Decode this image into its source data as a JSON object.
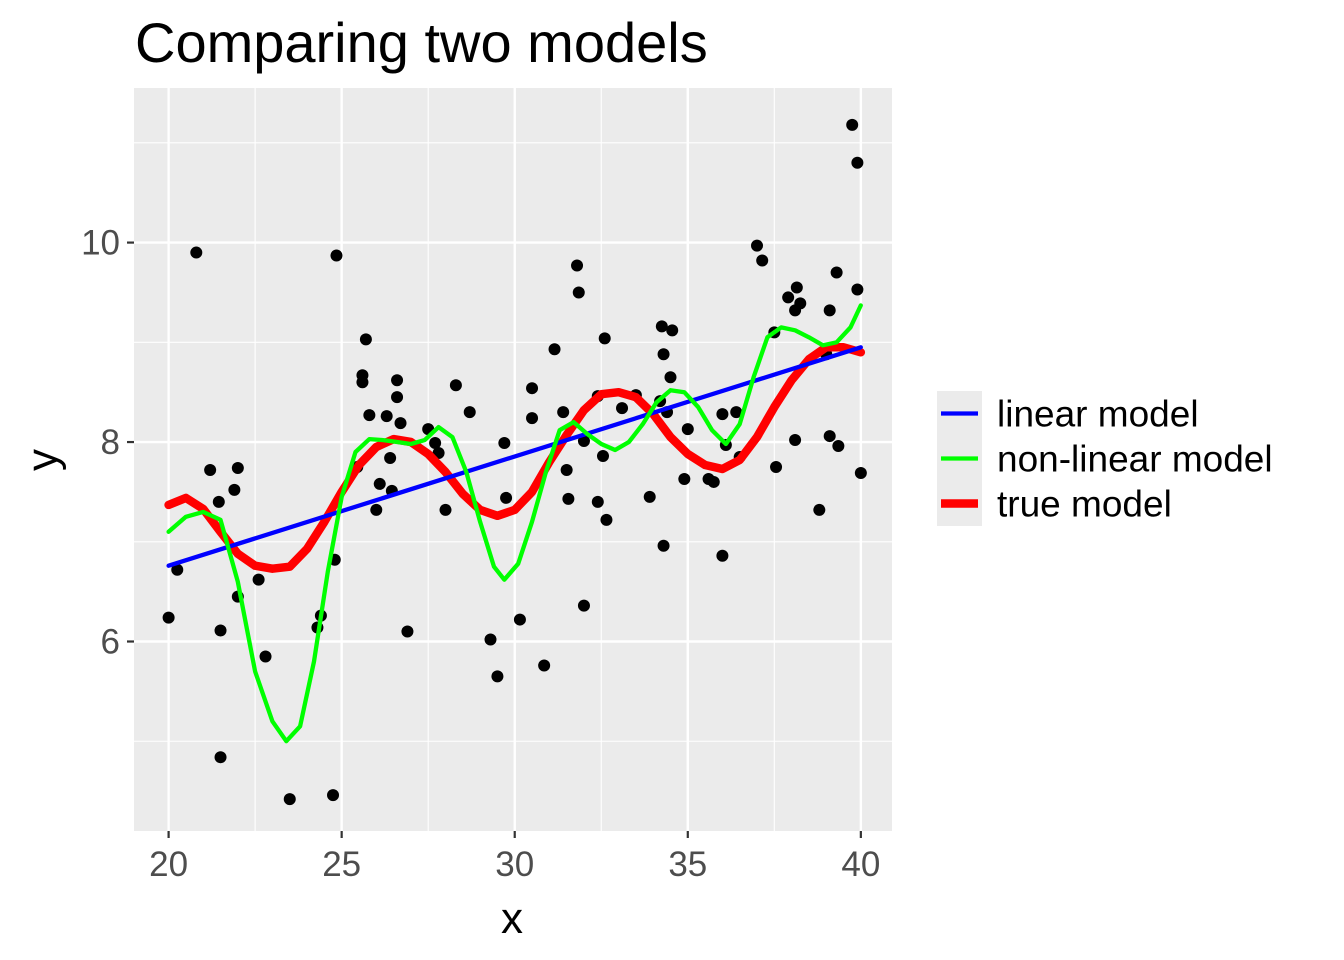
{
  "chart_data": {
    "type": "scatter",
    "title": "Comparing two models",
    "xlabel": "x",
    "ylabel": "y",
    "xlim": [
      19.0,
      40.9
    ],
    "ylim": [
      4.1,
      11.55
    ],
    "x_ticks": [
      20,
      25,
      30,
      35,
      40
    ],
    "y_ticks": [
      6,
      8,
      10
    ],
    "x_tick_labels": [
      "20",
      "25",
      "30",
      "35",
      "40"
    ],
    "y_tick_labels": [
      "6",
      "8",
      "10"
    ],
    "grid": true,
    "legend_position": "right",
    "colors": {
      "panel": "#ebebeb",
      "grid": "#ffffff",
      "points": "#000000",
      "linear": "#0000ff",
      "nonlinear": "#00ff00",
      "true": "#ff0000"
    },
    "points": [
      [
        20.0,
        6.24
      ],
      [
        20.25,
        6.72
      ],
      [
        20.8,
        9.9
      ],
      [
        21.2,
        7.72
      ],
      [
        21.45,
        7.4
      ],
      [
        21.5,
        6.11
      ],
      [
        21.5,
        4.84
      ],
      [
        21.9,
        7.52
      ],
      [
        22.0,
        7.74
      ],
      [
        22.0,
        6.45
      ],
      [
        22.6,
        6.62
      ],
      [
        22.8,
        5.85
      ],
      [
        23.5,
        4.42
      ],
      [
        24.3,
        6.14
      ],
      [
        24.4,
        6.26
      ],
      [
        24.75,
        4.46
      ],
      [
        24.8,
        6.82
      ],
      [
        24.85,
        9.87
      ],
      [
        25.45,
        7.75
      ],
      [
        25.6,
        8.67
      ],
      [
        25.6,
        8.6
      ],
      [
        25.7,
        9.03
      ],
      [
        25.8,
        8.27
      ],
      [
        26.0,
        7.32
      ],
      [
        26.1,
        7.58
      ],
      [
        26.3,
        8.26
      ],
      [
        26.4,
        7.84
      ],
      [
        26.45,
        7.51
      ],
      [
        26.6,
        8.45
      ],
      [
        26.6,
        8.62
      ],
      [
        26.7,
        8.19
      ],
      [
        26.9,
        6.1
      ],
      [
        27.5,
        8.13
      ],
      [
        27.7,
        7.99
      ],
      [
        27.8,
        7.89
      ],
      [
        28.0,
        7.32
      ],
      [
        28.3,
        8.57
      ],
      [
        28.7,
        8.3
      ],
      [
        29.3,
        6.02
      ],
      [
        29.5,
        5.65
      ],
      [
        29.7,
        7.99
      ],
      [
        29.75,
        7.44
      ],
      [
        30.15,
        6.22
      ],
      [
        30.5,
        8.54
      ],
      [
        30.5,
        8.24
      ],
      [
        30.85,
        5.76
      ],
      [
        31.15,
        8.93
      ],
      [
        31.4,
        8.3
      ],
      [
        31.5,
        7.72
      ],
      [
        31.55,
        7.43
      ],
      [
        31.8,
        9.77
      ],
      [
        31.85,
        9.5
      ],
      [
        32.0,
        8.01
      ],
      [
        32.0,
        6.36
      ],
      [
        32.4,
        8.46
      ],
      [
        32.4,
        7.4
      ],
      [
        32.55,
        7.86
      ],
      [
        32.6,
        9.04
      ],
      [
        32.65,
        7.22
      ],
      [
        33.1,
        8.34
      ],
      [
        33.5,
        8.47
      ],
      [
        33.9,
        7.45
      ],
      [
        34.2,
        8.41
      ],
      [
        34.25,
        9.16
      ],
      [
        34.3,
        8.88
      ],
      [
        34.3,
        6.96
      ],
      [
        34.4,
        8.3
      ],
      [
        34.5,
        8.65
      ],
      [
        34.55,
        9.12
      ],
      [
        34.9,
        7.63
      ],
      [
        35.0,
        8.13
      ],
      [
        35.6,
        7.63
      ],
      [
        35.75,
        7.6
      ],
      [
        36.0,
        6.86
      ],
      [
        36.0,
        8.28
      ],
      [
        36.1,
        7.97
      ],
      [
        36.4,
        8.3
      ],
      [
        36.5,
        7.85
      ],
      [
        37.0,
        9.97
      ],
      [
        37.15,
        9.82
      ],
      [
        37.5,
        9.1
      ],
      [
        37.55,
        7.75
      ],
      [
        37.9,
        9.45
      ],
      [
        38.1,
        9.32
      ],
      [
        38.1,
        8.02
      ],
      [
        38.15,
        9.55
      ],
      [
        38.25,
        9.39
      ],
      [
        38.8,
        7.32
      ],
      [
        39.0,
        8.88
      ],
      [
        39.1,
        9.32
      ],
      [
        39.1,
        8.06
      ],
      [
        39.3,
        9.7
      ],
      [
        39.35,
        7.96
      ],
      [
        39.75,
        11.18
      ],
      [
        39.9,
        9.53
      ],
      [
        39.9,
        10.8
      ],
      [
        40.0,
        7.69
      ]
    ],
    "series": [
      {
        "name": "linear model",
        "x": [
          20,
          40
        ],
        "y": [
          6.76,
          8.95
        ]
      },
      {
        "name": "non-linear model",
        "x": [
          20,
          20.5,
          21,
          21.5,
          22,
          22.5,
          23,
          23.4,
          23.8,
          24.2,
          24.6,
          25,
          25.4,
          25.8,
          26.2,
          26.6,
          27,
          27.4,
          27.8,
          28.2,
          28.6,
          29,
          29.4,
          29.7,
          30.1,
          30.5,
          30.9,
          31.3,
          31.7,
          32.1,
          32.5,
          32.9,
          33.3,
          33.7,
          34.1,
          34.5,
          34.9,
          35.3,
          35.7,
          36.1,
          36.5,
          36.9,
          37.3,
          37.7,
          38.1,
          38.5,
          38.9,
          39.3,
          39.7,
          40
        ],
        "y": [
          7.1,
          7.25,
          7.3,
          7.22,
          6.6,
          5.7,
          5.2,
          5.0,
          5.15,
          5.8,
          6.7,
          7.45,
          7.9,
          8.03,
          8.02,
          8.0,
          7.98,
          8.02,
          8.15,
          8.05,
          7.7,
          7.2,
          6.75,
          6.62,
          6.78,
          7.2,
          7.7,
          8.12,
          8.2,
          8.08,
          7.98,
          7.92,
          8.0,
          8.18,
          8.4,
          8.52,
          8.5,
          8.35,
          8.12,
          7.98,
          8.18,
          8.65,
          9.05,
          9.15,
          9.12,
          9.05,
          8.97,
          9.0,
          9.15,
          9.37
        ]
      },
      {
        "name": "true model",
        "x": [
          20,
          20.5,
          21,
          21.5,
          22,
          22.5,
          23,
          23.5,
          24,
          24.5,
          25,
          25.5,
          26,
          26.5,
          27,
          27.5,
          28,
          28.5,
          29,
          29.5,
          30,
          30.5,
          31,
          31.5,
          32,
          32.5,
          33,
          33.5,
          34,
          34.5,
          35,
          35.5,
          36,
          36.5,
          37,
          37.5,
          38,
          38.5,
          39,
          39.5,
          40
        ],
        "y": [
          7.37,
          7.44,
          7.33,
          7.1,
          6.88,
          6.76,
          6.73,
          6.75,
          6.93,
          7.2,
          7.5,
          7.77,
          7.95,
          8.03,
          8.0,
          7.88,
          7.7,
          7.48,
          7.32,
          7.26,
          7.32,
          7.5,
          7.8,
          8.07,
          8.32,
          8.48,
          8.5,
          8.45,
          8.28,
          8.05,
          7.88,
          7.77,
          7.73,
          7.82,
          8.05,
          8.35,
          8.62,
          8.83,
          8.95,
          8.95,
          8.9
        ]
      }
    ]
  }
}
